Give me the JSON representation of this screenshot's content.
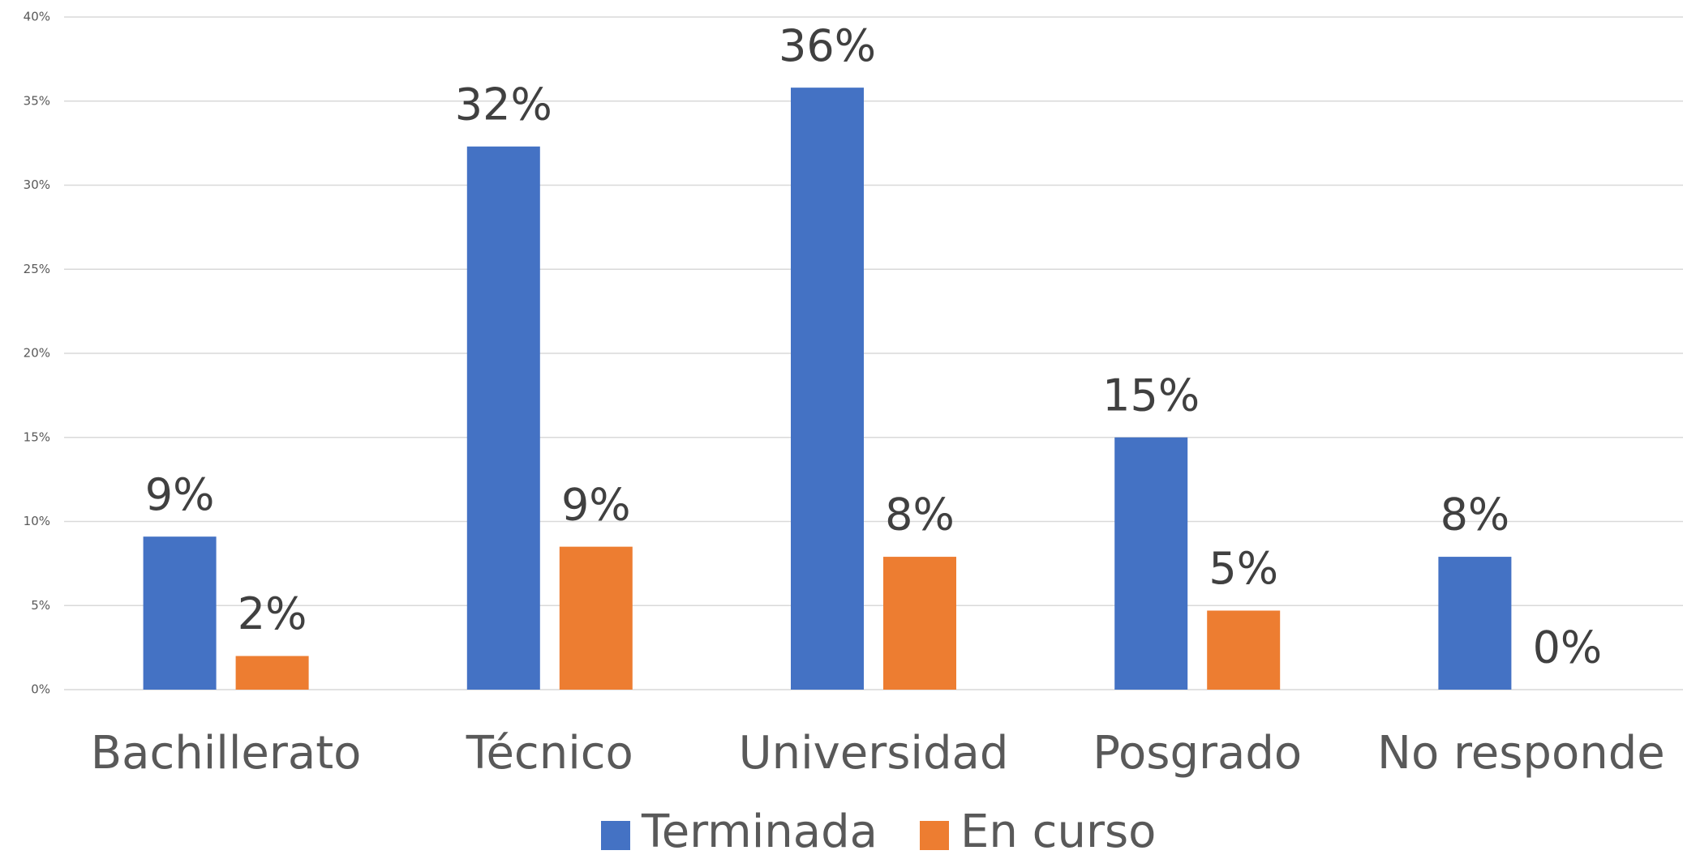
{
  "chart_data": {
    "type": "bar",
    "categories": [
      "Bachillerato",
      "Técnico",
      "Universidad",
      "Posgrado",
      "No responde"
    ],
    "series": [
      {
        "name": "Terminada",
        "color": "#4472c4",
        "values": [
          9.1,
          32.3,
          35.8,
          15.0,
          7.9
        ],
        "value_labels": [
          "9%",
          "32%",
          "36%",
          "15%",
          "8%"
        ]
      },
      {
        "name": "En curso",
        "color": "#ed7d31",
        "values": [
          2.0,
          8.5,
          7.9,
          4.7,
          0
        ],
        "value_labels": [
          "2%",
          "9%",
          "8%",
          "5%",
          "0%"
        ]
      }
    ],
    "ylim": [
      0,
      40
    ],
    "yticks": [
      {
        "value": 0,
        "label": "0%"
      },
      {
        "value": 5,
        "label": "5%"
      },
      {
        "value": 10,
        "label": "10%"
      },
      {
        "value": 15,
        "label": "15%"
      },
      {
        "value": 20,
        "label": "20%"
      },
      {
        "value": 25,
        "label": "25%"
      },
      {
        "value": 30,
        "label": "30%"
      },
      {
        "value": 35,
        "label": "35%"
      },
      {
        "value": 40,
        "label": "40%"
      }
    ],
    "grid": true,
    "legend": "bottom"
  }
}
